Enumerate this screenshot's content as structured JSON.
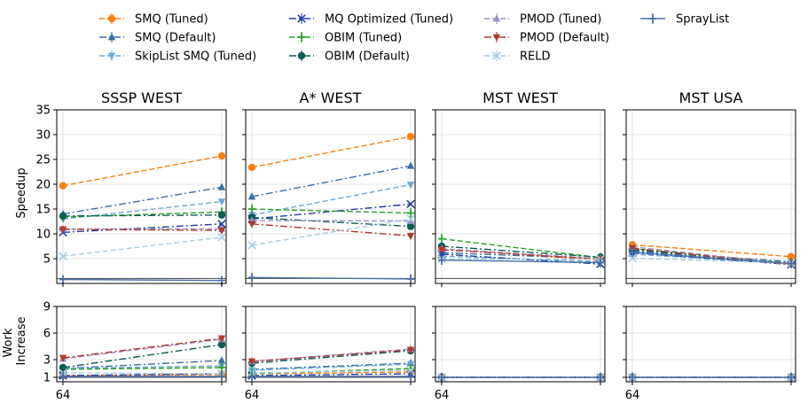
{
  "chart_data": {
    "type": "line",
    "x_tick_label": "64",
    "legend": {
      "placement": "top-center",
      "columns": 4,
      "entries": [
        {
          "name": "SMQ (Tuned)",
          "color": "#ff7f0e",
          "marker": "circle",
          "dash": "6,3"
        },
        {
          "name": "SMQ (Default)",
          "color": "#3b6ea8",
          "marker": "triangle-up",
          "dash": "8,3,2,3"
        },
        {
          "name": "SkipList SMQ (Tuned)",
          "color": "#6fa8d6",
          "marker": "triangle-down",
          "dash": "6,3"
        },
        {
          "name": "MQ Optimized (Tuned)",
          "color": "#1f3fa8",
          "marker": "x",
          "dash": "8,3,2,3"
        },
        {
          "name": "OBIM (Tuned)",
          "color": "#2ca02c",
          "marker": "plus",
          "dash": "6,3"
        },
        {
          "name": "OBIM (Default)",
          "color": "#0f5c55",
          "marker": "circle",
          "dash": "8,3,2,3"
        },
        {
          "name": "PMOD (Tuned)",
          "color": "#9a8fc8",
          "marker": "triangle-up",
          "dash": "6,3"
        },
        {
          "name": "PMOD (Default)",
          "color": "#b03a2e",
          "marker": "triangle-down",
          "dash": "8,3,2,3"
        },
        {
          "name": "RELD",
          "color": "#a6cee3",
          "marker": "x",
          "dash": "6,3"
        },
        {
          "name": "SprayList",
          "color": "#4a6fa5",
          "marker": "plus",
          "dash": ""
        }
      ]
    },
    "top_ylabel": "Speedup",
    "top_ylim": [
      0,
      35
    ],
    "top_yticks": [
      5,
      10,
      15,
      20,
      25,
      30,
      35
    ],
    "bottom_ylabel_lines": [
      "Work",
      "Increase"
    ],
    "bottom_ylim": [
      0.5,
      9
    ],
    "bottom_yticks": [
      1,
      3,
      6,
      9
    ],
    "grid": true,
    "panels": [
      {
        "title": "SSSP WEST",
        "speedup": [
          [
            19.7,
            25.7
          ],
          [
            14.0,
            19.4
          ],
          [
            13.0,
            16.5
          ],
          [
            10.3,
            12.0
          ],
          [
            13.4,
            14.4
          ],
          [
            13.6,
            13.8
          ],
          [
            11.0,
            11.0
          ],
          [
            10.9,
            10.7
          ],
          [
            5.5,
            9.3
          ],
          [
            0.8,
            0.6
          ]
        ],
        "work": [
          [
            1.2,
            1.3
          ],
          [
            2.0,
            2.9
          ],
          [
            2.0,
            2.3
          ],
          [
            1.2,
            1.4
          ],
          [
            1.9,
            2.1
          ],
          [
            2.1,
            4.7
          ],
          [
            3.1,
            5.3
          ],
          [
            3.2,
            5.4
          ],
          [
            1.5,
            1.4
          ],
          [
            1.1,
            1.1
          ]
        ]
      },
      {
        "title": "A* WEST",
        "speedup": [
          [
            23.4,
            29.6
          ],
          [
            17.5,
            23.7
          ],
          [
            13.8,
            19.9
          ],
          [
            13.0,
            16.0
          ],
          [
            15.0,
            14.2
          ],
          [
            13.3,
            11.5
          ],
          [
            12.7,
            12.6
          ],
          [
            12.0,
            9.6
          ],
          [
            7.7,
            13.0
          ],
          [
            1.2,
            0.9
          ]
        ],
        "work": [
          [
            1.4,
            1.6
          ],
          [
            1.9,
            2.6
          ],
          [
            1.8,
            2.5
          ],
          [
            1.2,
            1.4
          ],
          [
            1.4,
            2.0
          ],
          [
            2.6,
            4.0
          ],
          [
            2.8,
            4.2
          ],
          [
            2.8,
            4.1
          ],
          [
            1.5,
            1.8
          ],
          [
            1.1,
            1.1
          ]
        ]
      },
      {
        "title": "MST WEST",
        "speedup": [
          [
            7.0,
            4.7
          ],
          [
            6.2,
            5.0
          ],
          [
            5.5,
            4.4
          ],
          [
            5.9,
            3.9
          ],
          [
            9.0,
            5.2
          ],
          [
            7.5,
            5.3
          ],
          [
            7.0,
            5.0
          ],
          [
            6.8,
            4.9
          ],
          [
            4.9,
            4.9
          ],
          [
            4.7,
            4.2
          ]
        ],
        "work": [
          [
            1.0,
            1.0
          ],
          [
            1.0,
            1.0
          ],
          [
            1.0,
            1.0
          ],
          [
            1.0,
            1.0
          ],
          [
            1.0,
            1.0
          ],
          [
            1.0,
            1.0
          ],
          [
            1.0,
            1.0
          ],
          [
            1.0,
            1.0
          ],
          [
            1.0,
            1.0
          ],
          [
            1.0,
            1.0
          ]
        ]
      },
      {
        "title": "MST USA",
        "speedup": [
          [
            7.8,
            5.4
          ],
          [
            6.5,
            4.4
          ],
          [
            5.9,
            4.0
          ],
          [
            6.2,
            3.8
          ],
          [
            7.0,
            4.1
          ],
          [
            6.8,
            4.0
          ],
          [
            7.4,
            3.9
          ],
          [
            7.1,
            3.8
          ],
          [
            5.1,
            4.1
          ],
          [
            6.3,
            4.0
          ]
        ],
        "work": [
          [
            1.0,
            1.0
          ],
          [
            1.0,
            1.0
          ],
          [
            1.0,
            1.0
          ],
          [
            1.0,
            1.0
          ],
          [
            1.0,
            1.0
          ],
          [
            1.0,
            1.0
          ],
          [
            1.0,
            1.0
          ],
          [
            1.0,
            1.0
          ],
          [
            1.0,
            1.0
          ],
          [
            1.0,
            1.0
          ]
        ]
      }
    ]
  }
}
